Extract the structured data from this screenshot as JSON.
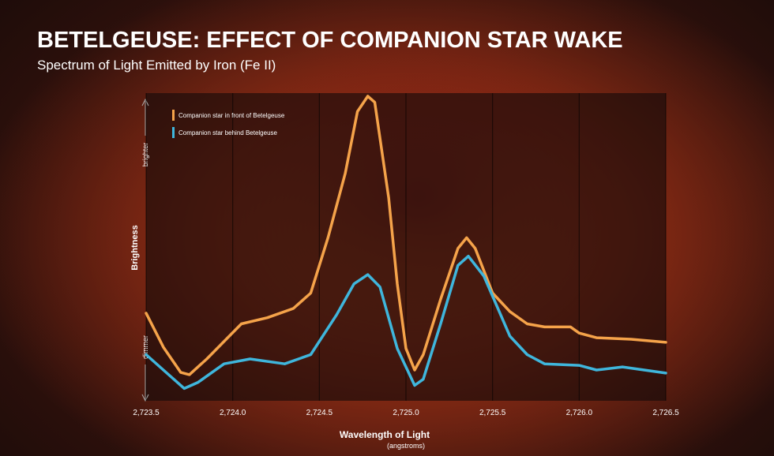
{
  "chart_data": {
    "type": "line",
    "title": "BETELGEUSE: EFFECT OF COMPANION STAR WAKE",
    "subtitle": "Spectrum of Light Emitted by Iron (Fe II)",
    "xlabel": "Wavelength of Light",
    "xunit": "(angstroms)",
    "ylabel": "Brightness",
    "ytop_label": "brighter",
    "ybottom_label": "dimmer",
    "xlim": [
      2723.5,
      2726.5
    ],
    "ylim": [
      0,
      100
    ],
    "xticks": [
      {
        "value": 2723.5,
        "label": "2,723.5"
      },
      {
        "value": 2724.0,
        "label": "2,724.0"
      },
      {
        "value": 2724.5,
        "label": "2,724.5"
      },
      {
        "value": 2725.0,
        "label": "2,725.0"
      },
      {
        "value": 2725.5,
        "label": "2,725.5"
      },
      {
        "value": 2726.0,
        "label": "2,726.0"
      },
      {
        "value": 2726.5,
        "label": "2,726.5"
      }
    ],
    "grid": true,
    "series": [
      {
        "name": "Companion star in front of Betelgeuse",
        "color": "#f5a34a",
        "x": [
          2723.5,
          2723.6,
          2723.7,
          2723.75,
          2723.85,
          2724.05,
          2724.2,
          2724.35,
          2724.45,
          2724.55,
          2724.65,
          2724.72,
          2724.78,
          2724.82,
          2724.9,
          2724.95,
          2725.0,
          2725.05,
          2725.1,
          2725.2,
          2725.3,
          2725.35,
          2725.4,
          2725.5,
          2725.6,
          2725.7,
          2725.8,
          2725.95,
          2726.0,
          2726.1,
          2726.3,
          2726.5
        ],
        "values": [
          28.5,
          17.4,
          9.2,
          8.5,
          13.6,
          25,
          27,
          30,
          35,
          53,
          74,
          94,
          99,
          97,
          66,
          38,
          17,
          10,
          15,
          33,
          49.5,
          53,
          49.5,
          35,
          29,
          25,
          24,
          24,
          22,
          20.5,
          20,
          19
        ]
      },
      {
        "name": "Companion star behind Betelgeuse",
        "color": "#3fb6dc",
        "x": [
          2723.5,
          2723.6,
          2723.72,
          2723.8,
          2723.95,
          2724.1,
          2724.3,
          2724.45,
          2724.6,
          2724.7,
          2724.78,
          2724.85,
          2724.95,
          2725.05,
          2725.1,
          2725.2,
          2725.3,
          2725.36,
          2725.45,
          2725.6,
          2725.7,
          2725.8,
          2726.0,
          2726.1,
          2726.25,
          2726.5
        ],
        "values": [
          15,
          10,
          4,
          6,
          12,
          13.6,
          12,
          15,
          28,
          38,
          41,
          37,
          17,
          5,
          7,
          25,
          44,
          47,
          40.5,
          21,
          15,
          12,
          11.5,
          10,
          11,
          9
        ]
      }
    ]
  }
}
